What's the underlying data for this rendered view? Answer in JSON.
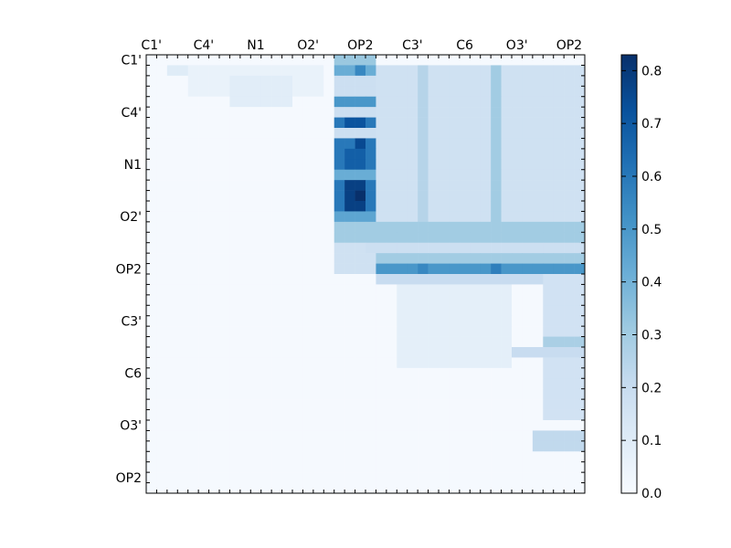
{
  "chart_data": {
    "type": "heatmap",
    "title": "",
    "xlabel": "",
    "ylabel": "",
    "x_tick_labels": [
      "C1'",
      "C4'",
      "N1",
      "O2'",
      "OP2",
      "C3'",
      "C6",
      "O3'",
      "OP2"
    ],
    "y_tick_labels": [
      "C1'",
      "C4'",
      "N1",
      "O2'",
      "OP2",
      "C3'",
      "C6",
      "O3'",
      "OP2"
    ],
    "grid_size": 42,
    "value_range": [
      0.0,
      0.83
    ],
    "colormap": [
      "#f7fbff",
      "#deebf7",
      "#c6dbef",
      "#9ecae1",
      "#6baed6",
      "#4292c6",
      "#2171b5",
      "#08519c",
      "#08306b"
    ],
    "colorbar_ticks": [
      "0.0",
      "0.1",
      "0.2",
      "0.3",
      "0.4",
      "0.5",
      "0.6",
      "0.7",
      "0.8"
    ],
    "colorbar_values": [
      0.0,
      0.1,
      0.2,
      0.3,
      0.4,
      0.5,
      0.6,
      0.7,
      0.8
    ],
    "regions": [
      {
        "rows": [
          0,
          41
        ],
        "cols": [
          0,
          41
        ],
        "value": 0.01
      },
      {
        "rows": [
          1,
          1
        ],
        "cols": [
          2,
          3
        ],
        "value": 0.1
      },
      {
        "rows": [
          1,
          3
        ],
        "cols": [
          4,
          16
        ],
        "value": 0.06
      },
      {
        "rows": [
          1,
          20
        ],
        "cols": [
          18,
          41
        ],
        "value": 0.17
      },
      {
        "rows": [
          2,
          4
        ],
        "cols": [
          8,
          13
        ],
        "value": 0.09
      },
      {
        "rows": [
          0,
          17
        ],
        "cols": [
          18,
          21
        ],
        "value": 0.18
      },
      {
        "rows": [
          0,
          0
        ],
        "cols": [
          18,
          21
        ],
        "value": 0.32
      },
      {
        "rows": [
          1,
          1
        ],
        "cols": [
          18,
          21
        ],
        "value": 0.42
      },
      {
        "rows": [
          1,
          1
        ],
        "cols": [
          20,
          20
        ],
        "value": 0.55
      },
      {
        "rows": [
          4,
          4
        ],
        "cols": [
          18,
          21
        ],
        "value": 0.5
      },
      {
        "rows": [
          6,
          6
        ],
        "cols": [
          18,
          21
        ],
        "value": 0.6
      },
      {
        "rows": [
          6,
          6
        ],
        "cols": [
          19,
          20
        ],
        "value": 0.72
      },
      {
        "rows": [
          8,
          14
        ],
        "cols": [
          18,
          21
        ],
        "value": 0.6
      },
      {
        "rows": [
          8,
          8
        ],
        "cols": [
          20,
          20
        ],
        "value": 0.75
      },
      {
        "rows": [
          9,
          10
        ],
        "cols": [
          19,
          20
        ],
        "value": 0.68
      },
      {
        "rows": [
          11,
          11
        ],
        "cols": [
          18,
          21
        ],
        "value": 0.42
      },
      {
        "rows": [
          12,
          14
        ],
        "cols": [
          19,
          20
        ],
        "value": 0.78
      },
      {
        "rows": [
          13,
          13
        ],
        "cols": [
          20,
          20
        ],
        "value": 0.83
      },
      {
        "rows": [
          15,
          15
        ],
        "cols": [
          18,
          21
        ],
        "value": 0.45
      },
      {
        "rows": [
          1,
          20
        ],
        "cols": [
          33,
          33
        ],
        "value": 0.3
      },
      {
        "rows": [
          1,
          20
        ],
        "cols": [
          26,
          26
        ],
        "value": 0.25
      },
      {
        "rows": [
          16,
          17
        ],
        "cols": [
          18,
          41
        ],
        "value": 0.3
      },
      {
        "rows": [
          18,
          18
        ],
        "cols": [
          21,
          41
        ],
        "value": 0.18
      },
      {
        "rows": [
          19,
          19
        ],
        "cols": [
          22,
          41
        ],
        "value": 0.3
      },
      {
        "rows": [
          20,
          20
        ],
        "cols": [
          22,
          41
        ],
        "value": 0.5
      },
      {
        "rows": [
          20,
          20
        ],
        "cols": [
          26,
          26
        ],
        "value": 0.55
      },
      {
        "rows": [
          20,
          20
        ],
        "cols": [
          33,
          33
        ],
        "value": 0.58
      },
      {
        "rows": [
          21,
          21
        ],
        "cols": [
          22,
          41
        ],
        "value": 0.2
      },
      {
        "rows": [
          22,
          41
        ],
        "cols": [
          22,
          41
        ],
        "value": 0.01
      },
      {
        "rows": [
          22,
          29
        ],
        "cols": [
          24,
          34
        ],
        "value": 0.08
      },
      {
        "rows": [
          21,
          34
        ],
        "cols": [
          38,
          41
        ],
        "value": 0.16
      },
      {
        "rows": [
          27,
          27
        ],
        "cols": [
          38,
          41
        ],
        "value": 0.28
      },
      {
        "rows": [
          28,
          28
        ],
        "cols": [
          35,
          41
        ],
        "value": 0.2
      },
      {
        "rows": [
          36,
          37
        ],
        "cols": [
          37,
          41
        ],
        "value": 0.22
      }
    ]
  }
}
